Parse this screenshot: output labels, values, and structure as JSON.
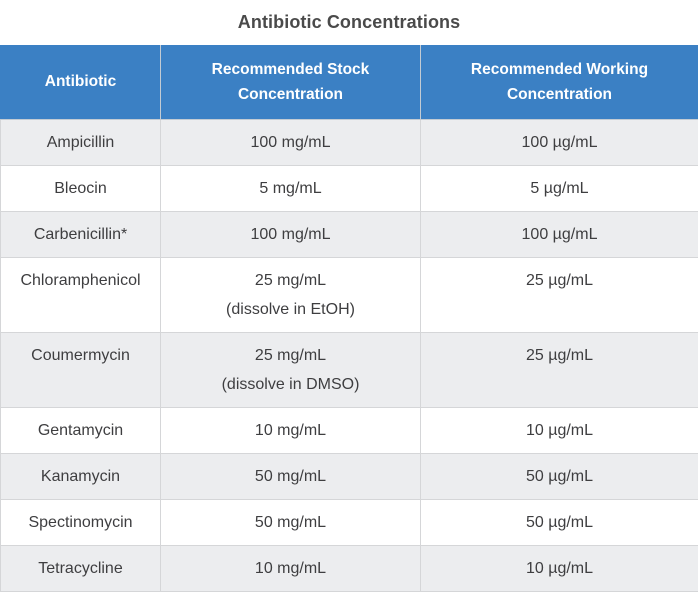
{
  "title": "Antibiotic Concentrations",
  "colors": {
    "header_background": "#3B80C4",
    "header_text": "#FFFFFF",
    "header_divider": "#C3CBD3",
    "row_alt_background": "#ECEDEF",
    "row_background": "#FFFFFF",
    "border": "#D5D6D8",
    "body_text": "#3E3E40",
    "title_text": "#4A4A4A"
  },
  "table": {
    "header": {
      "columns": [
        {
          "id": "antibiotic",
          "label": "Antibiotic",
          "lines": [
            "Antibiotic"
          ]
        },
        {
          "id": "stock-concentration",
          "label": "Recommended Stock Concentration",
          "lines": [
            "Recommended Stock",
            "Concentration"
          ]
        },
        {
          "id": "working-concentration",
          "label": "Recommended Working Concentration",
          "lines": [
            "Recommended Working",
            "Concentration"
          ]
        }
      ]
    },
    "rows": [
      {
        "antibiotic": "Ampicillin",
        "stock_lines": [
          "100 mg/mL"
        ],
        "working": "100 µg/mL"
      },
      {
        "antibiotic": "Bleocin",
        "stock_lines": [
          "5 mg/mL"
        ],
        "working": "5 µg/mL"
      },
      {
        "antibiotic": "Carbenicillin*",
        "stock_lines": [
          "100 mg/mL"
        ],
        "working": "100 µg/mL"
      },
      {
        "antibiotic": "Chloramphenicol",
        "stock_lines": [
          "25 mg/mL",
          "(dissolve in EtOH)"
        ],
        "working": "25 µg/mL"
      },
      {
        "antibiotic": "Coumermycin",
        "stock_lines": [
          "25 mg/mL",
          "(dissolve in DMSO)"
        ],
        "working": "25 µg/mL"
      },
      {
        "antibiotic": "Gentamycin",
        "stock_lines": [
          "10 mg/mL"
        ],
        "working": "10 µg/mL"
      },
      {
        "antibiotic": "Kanamycin",
        "stock_lines": [
          "50 mg/mL"
        ],
        "working": "50 µg/mL"
      },
      {
        "antibiotic": "Spectinomycin",
        "stock_lines": [
          "50 mg/mL"
        ],
        "working": "50 µg/mL"
      },
      {
        "antibiotic": "Tetracycline",
        "stock_lines": [
          "10 mg/mL"
        ],
        "working": "10 µg/mL"
      }
    ]
  }
}
